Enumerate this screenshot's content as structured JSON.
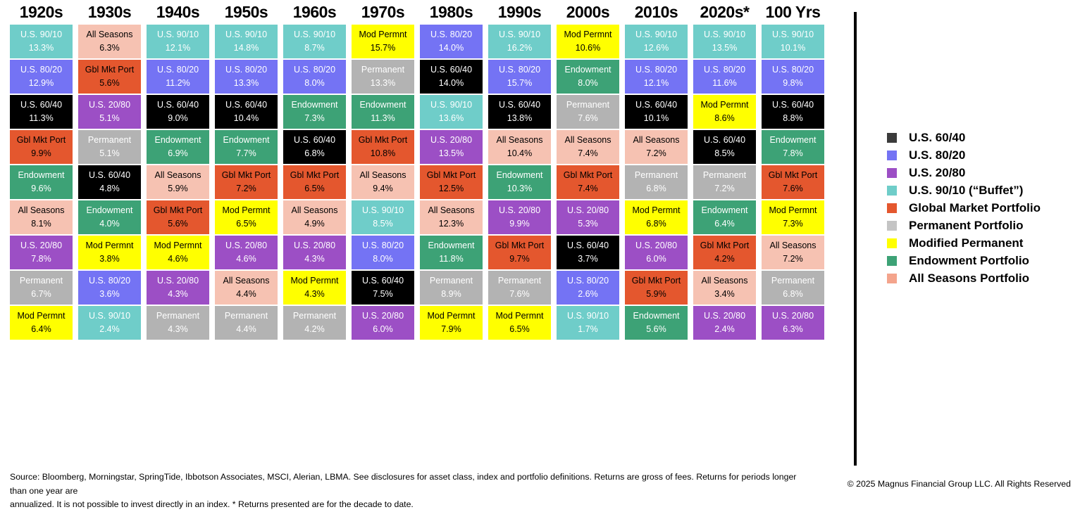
{
  "palette": {
    "us_60_40": {
      "bg": "#000000",
      "legend": "#3B3B3B",
      "text": "#FFFFFF"
    },
    "us_80_20": {
      "bg": "#7473F4",
      "legend": "#7473F4",
      "text": "#FFFFFF"
    },
    "us_20_80": {
      "bg": "#9C4FC5",
      "legend": "#9C4FC5",
      "text": "#FFFFFF"
    },
    "us_90_10": {
      "bg": "#6FCDC9",
      "legend": "#6FCDC9",
      "text": "#FFFFFF"
    },
    "global_market": {
      "bg": "#E4572E",
      "legend": "#E4572E",
      "text": "#000000"
    },
    "permanent": {
      "bg": "#B3B3B3",
      "legend": "#C4C4C4",
      "text": "#FFFFFF"
    },
    "mod_permanent": {
      "bg": "#FFFF00",
      "legend": "#FFFF00",
      "text": "#000000"
    },
    "endowment": {
      "bg": "#3DA276",
      "legend": "#3DA276",
      "text": "#FFFFFF"
    },
    "all_seasons": {
      "bg": "#F6C2B2",
      "legend": "#F4A48C",
      "text": "#000000"
    }
  },
  "legend": {
    "items": [
      {
        "key": "us_60_40",
        "label": "U.S. 60/40"
      },
      {
        "key": "us_80_20",
        "label": "U.S. 80/20"
      },
      {
        "key": "us_20_80",
        "label": "U.S. 20/80"
      },
      {
        "key": "us_90_10",
        "label": "U.S. 90/10 (“Buffet”)"
      },
      {
        "key": "global_market",
        "label": "Global Market Portfolio"
      },
      {
        "key": "permanent",
        "label": "Permanent Portfolio"
      },
      {
        "key": "mod_permanent",
        "label": "Modified Permanent"
      },
      {
        "key": "endowment",
        "label": "Endowment Portfolio"
      },
      {
        "key": "all_seasons",
        "label": "All Seasons Portfolio"
      }
    ]
  },
  "footer": {
    "line1": "Source: Bloomberg, Morningstar, SpringTide, Ibbotson Associates, MSCI, Alerian, LBMA. See disclosures for asset class, index and portfolio definitions. Returns are gross of fees. Returns for periods longer than one year are",
    "line2": "annualized. It is not possible to invest directly in an index. * Returns presented are for the decade to date.",
    "copyright": "© 2025 Magnus Financial Group LLC. All Rights Reserved"
  },
  "chart_data": {
    "type": "table",
    "description": "Periodic-table style ranking of portfolio returns by decade; each column lists portfolios ranked best to worst by annualized return.",
    "columns": [
      {
        "header": "1920s",
        "cells": [
          {
            "label": "U.S. 90/10",
            "value": "13.3%",
            "key": "us_90_10"
          },
          {
            "label": "U.S. 80/20",
            "value": "12.9%",
            "key": "us_80_20"
          },
          {
            "label": "U.S. 60/40",
            "value": "11.3%",
            "key": "us_60_40"
          },
          {
            "label": "Gbl Mkt Port",
            "value": "9.9%",
            "key": "global_market"
          },
          {
            "label": "Endowment",
            "value": "9.6%",
            "key": "endowment"
          },
          {
            "label": "All Seasons",
            "value": "8.1%",
            "key": "all_seasons"
          },
          {
            "label": "U.S. 20/80",
            "value": "7.8%",
            "key": "us_20_80"
          },
          {
            "label": "Permanent",
            "value": "6.7%",
            "key": "permanent"
          },
          {
            "label": "Mod Permnt",
            "value": "6.4%",
            "key": "mod_permanent"
          }
        ]
      },
      {
        "header": "1930s",
        "cells": [
          {
            "label": "All Seasons",
            "value": "6.3%",
            "key": "all_seasons"
          },
          {
            "label": "Gbl Mkt Port",
            "value": "5.6%",
            "key": "global_market"
          },
          {
            "label": "U.S. 20/80",
            "value": "5.1%",
            "key": "us_20_80"
          },
          {
            "label": "Permanent",
            "value": "5.1%",
            "key": "permanent"
          },
          {
            "label": "U.S. 60/40",
            "value": "4.8%",
            "key": "us_60_40"
          },
          {
            "label": "Endowment",
            "value": "4.0%",
            "key": "endowment"
          },
          {
            "label": "Mod Permnt",
            "value": "3.8%",
            "key": "mod_permanent"
          },
          {
            "label": "U.S. 80/20",
            "value": "3.6%",
            "key": "us_80_20"
          },
          {
            "label": "U.S. 90/10",
            "value": "2.4%",
            "key": "us_90_10"
          }
        ]
      },
      {
        "header": "1940s",
        "cells": [
          {
            "label": "U.S. 90/10",
            "value": "12.1%",
            "key": "us_90_10"
          },
          {
            "label": "U.S. 80/20",
            "value": "11.2%",
            "key": "us_80_20"
          },
          {
            "label": "U.S. 60/40",
            "value": "9.0%",
            "key": "us_60_40"
          },
          {
            "label": "Endowment",
            "value": "6.9%",
            "key": "endowment"
          },
          {
            "label": "All Seasons",
            "value": "5.9%",
            "key": "all_seasons"
          },
          {
            "label": "Gbl Mkt Port",
            "value": "5.6%",
            "key": "global_market"
          },
          {
            "label": "Mod Permnt",
            "value": "4.6%",
            "key": "mod_permanent"
          },
          {
            "label": "U.S. 20/80",
            "value": "4.3%",
            "key": "us_20_80"
          },
          {
            "label": "Permanent",
            "value": "4.3%",
            "key": "permanent"
          }
        ]
      },
      {
        "header": "1950s",
        "cells": [
          {
            "label": "U.S. 90/10",
            "value": "14.8%",
            "key": "us_90_10"
          },
          {
            "label": "U.S. 80/20",
            "value": "13.3%",
            "key": "us_80_20"
          },
          {
            "label": "U.S. 60/40",
            "value": "10.4%",
            "key": "us_60_40"
          },
          {
            "label": "Endowment",
            "value": "7.7%",
            "key": "endowment"
          },
          {
            "label": "Gbl Mkt Port",
            "value": "7.2%",
            "key": "global_market"
          },
          {
            "label": "Mod Permnt",
            "value": "6.5%",
            "key": "mod_permanent"
          },
          {
            "label": "U.S. 20/80",
            "value": "4.6%",
            "key": "us_20_80"
          },
          {
            "label": "All Seasons",
            "value": "4.4%",
            "key": "all_seasons"
          },
          {
            "label": "Permanent",
            "value": "4.4%",
            "key": "permanent"
          }
        ]
      },
      {
        "header": "1960s",
        "cells": [
          {
            "label": "U.S. 90/10",
            "value": "8.7%",
            "key": "us_90_10"
          },
          {
            "label": "U.S. 80/20",
            "value": "8.0%",
            "key": "us_80_20"
          },
          {
            "label": "Endowment",
            "value": "7.3%",
            "key": "endowment"
          },
          {
            "label": "U.S. 60/40",
            "value": "6.8%",
            "key": "us_60_40"
          },
          {
            "label": "Gbl Mkt Port",
            "value": "6.5%",
            "key": "global_market"
          },
          {
            "label": "All Seasons",
            "value": "4.9%",
            "key": "all_seasons"
          },
          {
            "label": "U.S. 20/80",
            "value": "4.3%",
            "key": "us_20_80"
          },
          {
            "label": "Mod Permnt",
            "value": "4.3%",
            "key": "mod_permanent"
          },
          {
            "label": "Permanent",
            "value": "4.2%",
            "key": "permanent"
          }
        ]
      },
      {
        "header": "1970s",
        "cells": [
          {
            "label": "Mod Permnt",
            "value": "15.7%",
            "key": "mod_permanent"
          },
          {
            "label": "Permanent",
            "value": "13.3%",
            "key": "permanent"
          },
          {
            "label": "Endowment",
            "value": "11.3%",
            "key": "endowment"
          },
          {
            "label": "Gbl Mkt Port",
            "value": "10.8%",
            "key": "global_market"
          },
          {
            "label": "All Seasons",
            "value": "9.4%",
            "key": "all_seasons"
          },
          {
            "label": "U.S. 90/10",
            "value": "8.5%",
            "key": "us_90_10"
          },
          {
            "label": "U.S. 80/20",
            "value": "8.0%",
            "key": "us_80_20"
          },
          {
            "label": "U.S. 60/40",
            "value": "7.5%",
            "key": "us_60_40"
          },
          {
            "label": "U.S. 20/80",
            "value": "6.0%",
            "key": "us_20_80"
          }
        ]
      },
      {
        "header": "1980s",
        "cells": [
          {
            "label": "U.S. 80/20",
            "value": "14.0%",
            "key": "us_80_20"
          },
          {
            "label": "U.S. 60/40",
            "value": "14.0%",
            "key": "us_60_40"
          },
          {
            "label": "U.S. 90/10",
            "value": "13.6%",
            "key": "us_90_10"
          },
          {
            "label": "U.S. 20/80",
            "value": "13.5%",
            "key": "us_20_80"
          },
          {
            "label": "Gbl Mkt Port",
            "value": "12.5%",
            "key": "global_market"
          },
          {
            "label": "All Seasons",
            "value": "12.3%",
            "key": "all_seasons"
          },
          {
            "label": "Endowment",
            "value": "11.8%",
            "key": "endowment"
          },
          {
            "label": "Permanent",
            "value": "8.9%",
            "key": "permanent"
          },
          {
            "label": "Mod Permnt",
            "value": "7.9%",
            "key": "mod_permanent"
          }
        ]
      },
      {
        "header": "1990s",
        "cells": [
          {
            "label": "U.S. 90/10",
            "value": "16.2%",
            "key": "us_90_10"
          },
          {
            "label": "U.S. 80/20",
            "value": "15.7%",
            "key": "us_80_20"
          },
          {
            "label": "U.S. 60/40",
            "value": "13.8%",
            "key": "us_60_40"
          },
          {
            "label": "All Seasons",
            "value": "10.4%",
            "key": "all_seasons"
          },
          {
            "label": "Endowment",
            "value": "10.3%",
            "key": "endowment"
          },
          {
            "label": "U.S. 20/80",
            "value": "9.9%",
            "key": "us_20_80"
          },
          {
            "label": "Gbl Mkt Port",
            "value": "9.7%",
            "key": "global_market"
          },
          {
            "label": "Permanent",
            "value": "7.6%",
            "key": "permanent"
          },
          {
            "label": "Mod Permnt",
            "value": "6.5%",
            "key": "mod_permanent"
          }
        ]
      },
      {
        "header": "2000s",
        "cells": [
          {
            "label": "Mod Permnt",
            "value": "10.6%",
            "key": "mod_permanent"
          },
          {
            "label": "Endowment",
            "value": "8.0%",
            "key": "endowment"
          },
          {
            "label": "Permanent",
            "value": "7.6%",
            "key": "permanent"
          },
          {
            "label": "All Seasons",
            "value": "7.4%",
            "key": "all_seasons"
          },
          {
            "label": "Gbl Mkt Port",
            "value": "7.4%",
            "key": "global_market"
          },
          {
            "label": "U.S. 20/80",
            "value": "5.3%",
            "key": "us_20_80"
          },
          {
            "label": "U.S. 60/40",
            "value": "3.7%",
            "key": "us_60_40"
          },
          {
            "label": "U.S. 80/20",
            "value": "2.6%",
            "key": "us_80_20"
          },
          {
            "label": "U.S. 90/10",
            "value": "1.7%",
            "key": "us_90_10"
          }
        ]
      },
      {
        "header": "2010s",
        "cells": [
          {
            "label": "U.S. 90/10",
            "value": "12.6%",
            "key": "us_90_10"
          },
          {
            "label": "U.S. 80/20",
            "value": "12.1%",
            "key": "us_80_20"
          },
          {
            "label": "U.S. 60/40",
            "value": "10.1%",
            "key": "us_60_40"
          },
          {
            "label": "All Seasons",
            "value": "7.2%",
            "key": "all_seasons"
          },
          {
            "label": "Permanent",
            "value": "6.8%",
            "key": "permanent"
          },
          {
            "label": "Mod Permnt",
            "value": "6.8%",
            "key": "mod_permanent"
          },
          {
            "label": "U.S. 20/80",
            "value": "6.0%",
            "key": "us_20_80"
          },
          {
            "label": "Gbl Mkt Port",
            "value": "5.9%",
            "key": "global_market"
          },
          {
            "label": "Endowment",
            "value": "5.6%",
            "key": "endowment"
          }
        ]
      },
      {
        "header": "2020s*",
        "cells": [
          {
            "label": "U.S. 90/10",
            "value": "13.5%",
            "key": "us_90_10"
          },
          {
            "label": "U.S. 80/20",
            "value": "11.6%",
            "key": "us_80_20"
          },
          {
            "label": "Mod Permnt",
            "value": "8.6%",
            "key": "mod_permanent"
          },
          {
            "label": "U.S. 60/40",
            "value": "8.5%",
            "key": "us_60_40"
          },
          {
            "label": "Permanent",
            "value": "7.2%",
            "key": "permanent"
          },
          {
            "label": "Endowment",
            "value": "6.4%",
            "key": "endowment"
          },
          {
            "label": "Gbl Mkt Port",
            "value": "4.2%",
            "key": "global_market"
          },
          {
            "label": "All Seasons",
            "value": "3.4%",
            "key": "all_seasons"
          },
          {
            "label": "U.S. 20/80",
            "value": "2.4%",
            "key": "us_20_80"
          }
        ]
      },
      {
        "header": "100 Yrs",
        "cells": [
          {
            "label": "U.S. 90/10",
            "value": "10.1%",
            "key": "us_90_10"
          },
          {
            "label": "U.S. 80/20",
            "value": "9.8%",
            "key": "us_80_20"
          },
          {
            "label": "U.S. 60/40",
            "value": "8.8%",
            "key": "us_60_40"
          },
          {
            "label": "Endowment",
            "value": "7.8%",
            "key": "endowment"
          },
          {
            "label": "Gbl Mkt Port",
            "value": "7.6%",
            "key": "global_market"
          },
          {
            "label": "Mod Permnt",
            "value": "7.3%",
            "key": "mod_permanent"
          },
          {
            "label": "All Seasons",
            "value": "7.2%",
            "key": "all_seasons"
          },
          {
            "label": "Permanent",
            "value": "6.8%",
            "key": "permanent"
          },
          {
            "label": "U.S. 20/80",
            "value": "6.3%",
            "key": "us_20_80"
          }
        ]
      }
    ]
  }
}
